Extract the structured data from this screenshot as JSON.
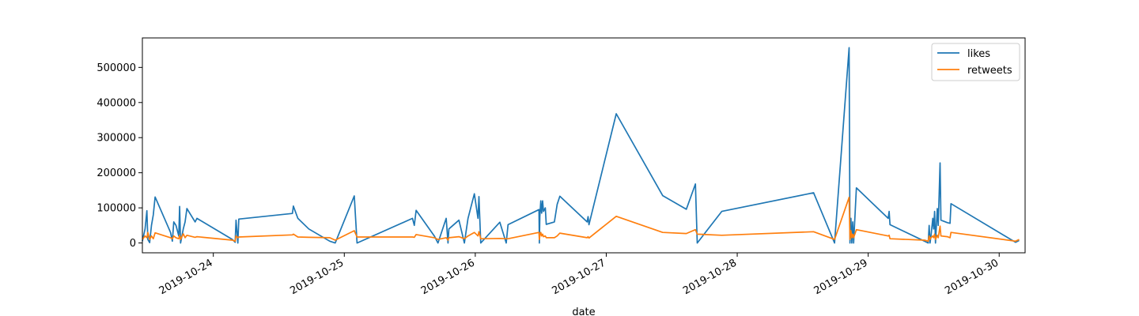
{
  "chart_data": {
    "type": "line",
    "title": "",
    "xlabel": "date",
    "ylabel": "",
    "x_tick_labels": [
      "2019-10-24",
      "2019-10-25",
      "2019-10-26",
      "2019-10-27",
      "2019-10-28",
      "2019-10-29",
      "2019-10-30"
    ],
    "y_tick_labels": [
      "0",
      "100000",
      "200000",
      "300000",
      "400000",
      "500000"
    ],
    "xlim": [
      "2019-10-23 11:00",
      "2019-10-30 04:45"
    ],
    "ylim": [
      -28000,
      584000
    ],
    "grid": false,
    "legend_position": "top-right",
    "series": [
      {
        "name": "likes",
        "color": "#1f77b4",
        "points": [
          [
            "2019-10-23 11:00",
            5000
          ],
          [
            "2019-10-23 11:30",
            40000
          ],
          [
            "2019-10-23 11:50",
            92000
          ],
          [
            "2019-10-23 12:00",
            10000
          ],
          [
            "2019-10-23 12:20",
            1000
          ],
          [
            "2019-10-23 12:40",
            50000
          ],
          [
            "2019-10-23 13:00",
            80000
          ],
          [
            "2019-10-23 13:20",
            131000
          ],
          [
            "2019-10-23 16:10",
            30000
          ],
          [
            "2019-10-23 16:30",
            5000
          ],
          [
            "2019-10-23 16:45",
            60000
          ],
          [
            "2019-10-23 17:10",
            50000
          ],
          [
            "2019-10-23 17:40",
            20000
          ],
          [
            "2019-10-23 17:50",
            104000
          ],
          [
            "2019-10-23 18:00",
            0
          ],
          [
            "2019-10-23 18:30",
            40000
          ],
          [
            "2019-10-23 18:50",
            60000
          ],
          [
            "2019-10-23 19:10",
            98000
          ],
          [
            "2019-10-23 20:40",
            60000
          ],
          [
            "2019-10-23 21:00",
            70000
          ],
          [
            "2019-10-24 03:30",
            10000
          ],
          [
            "2019-10-24 04:00",
            2000
          ],
          [
            "2019-10-24 04:10",
            65000
          ],
          [
            "2019-10-24 04:30",
            0
          ],
          [
            "2019-10-24 04:40",
            68000
          ],
          [
            "2019-10-24 14:30",
            84000
          ],
          [
            "2019-10-24 14:40",
            105000
          ],
          [
            "2019-10-24 15:30",
            70000
          ],
          [
            "2019-10-24 17:30",
            40000
          ],
          [
            "2019-10-24 21:20",
            5000
          ],
          [
            "2019-10-24 22:20",
            0
          ],
          [
            "2019-10-25 01:50",
            134000
          ],
          [
            "2019-10-25 02:20",
            0
          ],
          [
            "2019-10-25 12:30",
            70000
          ],
          [
            "2019-10-25 12:50",
            50000
          ],
          [
            "2019-10-25 13:10",
            93000
          ],
          [
            "2019-10-25 16:30",
            20000
          ],
          [
            "2019-10-25 17:10",
            0
          ],
          [
            "2019-10-25 18:40",
            70000
          ],
          [
            "2019-10-25 19:00",
            0
          ],
          [
            "2019-10-25 19:10",
            40000
          ],
          [
            "2019-10-25 21:00",
            65000
          ],
          [
            "2019-10-25 22:00",
            0
          ],
          [
            "2019-10-25 22:40",
            70000
          ],
          [
            "2019-10-25 23:50",
            140000
          ],
          [
            "2019-10-26 00:30",
            70000
          ],
          [
            "2019-10-26 00:40",
            132000
          ],
          [
            "2019-10-26 01:00",
            0
          ],
          [
            "2019-10-26 04:30",
            59000
          ],
          [
            "2019-10-26 05:40",
            0
          ],
          [
            "2019-10-26 06:00",
            52000
          ],
          [
            "2019-10-26 11:40",
            95000
          ],
          [
            "2019-10-26 11:45",
            0
          ],
          [
            "2019-10-26 11:50",
            75000
          ],
          [
            "2019-10-26 12:00",
            120000
          ],
          [
            "2019-10-26 12:10",
            85000
          ],
          [
            "2019-10-26 12:20",
            120000
          ],
          [
            "2019-10-26 12:30",
            90000
          ],
          [
            "2019-10-26 12:50",
            100000
          ],
          [
            "2019-10-26 13:00",
            53000
          ],
          [
            "2019-10-26 14:30",
            60000
          ],
          [
            "2019-10-26 15:00",
            110000
          ],
          [
            "2019-10-26 15:30",
            133000
          ],
          [
            "2019-10-26 20:30",
            60000
          ],
          [
            "2019-10-26 20:40",
            75000
          ],
          [
            "2019-10-26 20:50",
            52000
          ],
          [
            "2019-10-27 01:50",
            368000
          ],
          [
            "2019-10-27 10:20",
            135000
          ],
          [
            "2019-10-27 14:40",
            96000
          ],
          [
            "2019-10-27 16:20",
            168000
          ],
          [
            "2019-10-27 16:40",
            0
          ],
          [
            "2019-10-27 21:10",
            90000
          ],
          [
            "2019-10-28 14:00",
            143000
          ],
          [
            "2019-10-28 17:50",
            0
          ],
          [
            "2019-10-28 20:30",
            556000
          ],
          [
            "2019-10-28 20:40",
            0
          ],
          [
            "2019-10-28 20:50",
            70000
          ],
          [
            "2019-10-28 21:00",
            0
          ],
          [
            "2019-10-28 21:10",
            60000
          ],
          [
            "2019-10-28 21:20",
            0
          ],
          [
            "2019-10-28 21:50",
            157000
          ],
          [
            "2019-10-29 03:40",
            70000
          ],
          [
            "2019-10-29 03:50",
            90000
          ],
          [
            "2019-10-29 04:00",
            52000
          ],
          [
            "2019-10-29 10:20",
            5000
          ],
          [
            "2019-10-29 11:00",
            0
          ],
          [
            "2019-10-29 11:10",
            50000
          ],
          [
            "2019-10-29 11:20",
            0
          ],
          [
            "2019-10-29 11:30",
            20000
          ],
          [
            "2019-10-29 11:50",
            70000
          ],
          [
            "2019-10-29 12:00",
            40000
          ],
          [
            "2019-10-29 12:10",
            90000
          ],
          [
            "2019-10-29 12:20",
            0
          ],
          [
            "2019-10-29 12:40",
            98000
          ],
          [
            "2019-10-29 12:50",
            50000
          ],
          [
            "2019-10-29 13:10",
            228000
          ],
          [
            "2019-10-29 13:20",
            65000
          ],
          [
            "2019-10-29 14:30",
            58000
          ],
          [
            "2019-10-29 15:00",
            56000
          ],
          [
            "2019-10-29 15:10",
            112000
          ],
          [
            "2019-10-30 03:00",
            2000
          ],
          [
            "2019-10-30 03:40",
            7000
          ]
        ]
      },
      {
        "name": "retweets",
        "color": "#ff7f0e",
        "points": [
          [
            "2019-10-23 11:00",
            10000
          ],
          [
            "2019-10-23 11:30",
            20000
          ],
          [
            "2019-10-23 11:50",
            15000
          ],
          [
            "2019-10-23 12:00",
            30000
          ],
          [
            "2019-10-23 12:20",
            10000
          ],
          [
            "2019-10-23 12:40",
            20000
          ],
          [
            "2019-10-23 13:00",
            12000
          ],
          [
            "2019-10-23 13:20",
            29000
          ],
          [
            "2019-10-23 16:10",
            15000
          ],
          [
            "2019-10-23 16:30",
            12000
          ],
          [
            "2019-10-23 16:45",
            20000
          ],
          [
            "2019-10-23 17:10",
            15000
          ],
          [
            "2019-10-23 17:40",
            12000
          ],
          [
            "2019-10-23 17:50",
            22000
          ],
          [
            "2019-10-23 18:00",
            10000
          ],
          [
            "2019-10-23 18:30",
            26000
          ],
          [
            "2019-10-23 18:50",
            15000
          ],
          [
            "2019-10-23 19:10",
            22000
          ],
          [
            "2019-10-23 20:40",
            16000
          ],
          [
            "2019-10-23 21:00",
            18000
          ],
          [
            "2019-10-24 03:30",
            8000
          ],
          [
            "2019-10-24 04:00",
            5000
          ],
          [
            "2019-10-24 04:10",
            20000
          ],
          [
            "2019-10-24 04:30",
            15000
          ],
          [
            "2019-10-24 04:40",
            17000
          ],
          [
            "2019-10-24 14:30",
            23000
          ],
          [
            "2019-10-24 14:40",
            25000
          ],
          [
            "2019-10-24 15:30",
            17000
          ],
          [
            "2019-10-24 17:30",
            16000
          ],
          [
            "2019-10-24 21:20",
            15000
          ],
          [
            "2019-10-24 22:20",
            8000
          ],
          [
            "2019-10-25 01:50",
            35000
          ],
          [
            "2019-10-25 02:20",
            17000
          ],
          [
            "2019-10-25 12:30",
            17000
          ],
          [
            "2019-10-25 12:50",
            16000
          ],
          [
            "2019-10-25 13:10",
            24000
          ],
          [
            "2019-10-25 16:30",
            15000
          ],
          [
            "2019-10-25 17:10",
            10000
          ],
          [
            "2019-10-25 18:40",
            15000
          ],
          [
            "2019-10-25 19:00",
            8000
          ],
          [
            "2019-10-25 19:10",
            15000
          ],
          [
            "2019-10-25 21:00",
            18000
          ],
          [
            "2019-10-25 22:00",
            12000
          ],
          [
            "2019-10-25 22:40",
            20000
          ],
          [
            "2019-10-25 23:50",
            30000
          ],
          [
            "2019-10-26 00:30",
            20000
          ],
          [
            "2019-10-26 00:40",
            32000
          ],
          [
            "2019-10-26 01:00",
            12000
          ],
          [
            "2019-10-26 04:30",
            13000
          ],
          [
            "2019-10-26 05:40",
            12000
          ],
          [
            "2019-10-26 06:00",
            12000
          ],
          [
            "2019-10-26 11:40",
            30000
          ],
          [
            "2019-10-26 11:45",
            10000
          ],
          [
            "2019-10-26 11:50",
            20000
          ],
          [
            "2019-10-26 12:00",
            30000
          ],
          [
            "2019-10-26 12:10",
            20000
          ],
          [
            "2019-10-26 12:20",
            25000
          ],
          [
            "2019-10-26 12:30",
            18000
          ],
          [
            "2019-10-26 12:50",
            20000
          ],
          [
            "2019-10-26 13:00",
            15000
          ],
          [
            "2019-10-26 14:30",
            15000
          ],
          [
            "2019-10-26 15:00",
            20000
          ],
          [
            "2019-10-26 15:30",
            28000
          ],
          [
            "2019-10-26 20:30",
            15000
          ],
          [
            "2019-10-26 20:40",
            18000
          ],
          [
            "2019-10-26 20:50",
            14000
          ],
          [
            "2019-10-27 01:50",
            76000
          ],
          [
            "2019-10-27 10:20",
            30000
          ],
          [
            "2019-10-27 14:40",
            27000
          ],
          [
            "2019-10-27 16:20",
            38000
          ],
          [
            "2019-10-27 16:40",
            25000
          ],
          [
            "2019-10-27 21:10",
            22000
          ],
          [
            "2019-10-28 14:00",
            32000
          ],
          [
            "2019-10-28 17:50",
            10000
          ],
          [
            "2019-10-28 20:30",
            130000
          ],
          [
            "2019-10-28 20:40",
            10000
          ],
          [
            "2019-10-28 20:50",
            35000
          ],
          [
            "2019-10-28 21:00",
            15000
          ],
          [
            "2019-10-28 21:10",
            25000
          ],
          [
            "2019-10-28 21:20",
            15000
          ],
          [
            "2019-10-28 21:50",
            38000
          ],
          [
            "2019-10-29 03:40",
            20000
          ],
          [
            "2019-10-29 03:50",
            22000
          ],
          [
            "2019-10-29 04:00",
            12000
          ],
          [
            "2019-10-29 10:20",
            8000
          ],
          [
            "2019-10-29 11:00",
            5000
          ],
          [
            "2019-10-29 11:10",
            20000
          ],
          [
            "2019-10-29 11:20",
            10000
          ],
          [
            "2019-10-29 11:30",
            15000
          ],
          [
            "2019-10-29 11:50",
            20000
          ],
          [
            "2019-10-29 12:00",
            15000
          ],
          [
            "2019-10-29 12:10",
            25000
          ],
          [
            "2019-10-29 12:20",
            10000
          ],
          [
            "2019-10-29 12:40",
            22000
          ],
          [
            "2019-10-29 12:50",
            15000
          ],
          [
            "2019-10-29 13:10",
            48000
          ],
          [
            "2019-10-29 13:20",
            20000
          ],
          [
            "2019-10-29 14:30",
            18000
          ],
          [
            "2019-10-29 15:00",
            15000
          ],
          [
            "2019-10-29 15:10",
            30000
          ],
          [
            "2019-10-30 03:00",
            5000
          ],
          [
            "2019-10-30 03:40",
            10000
          ]
        ]
      }
    ]
  }
}
